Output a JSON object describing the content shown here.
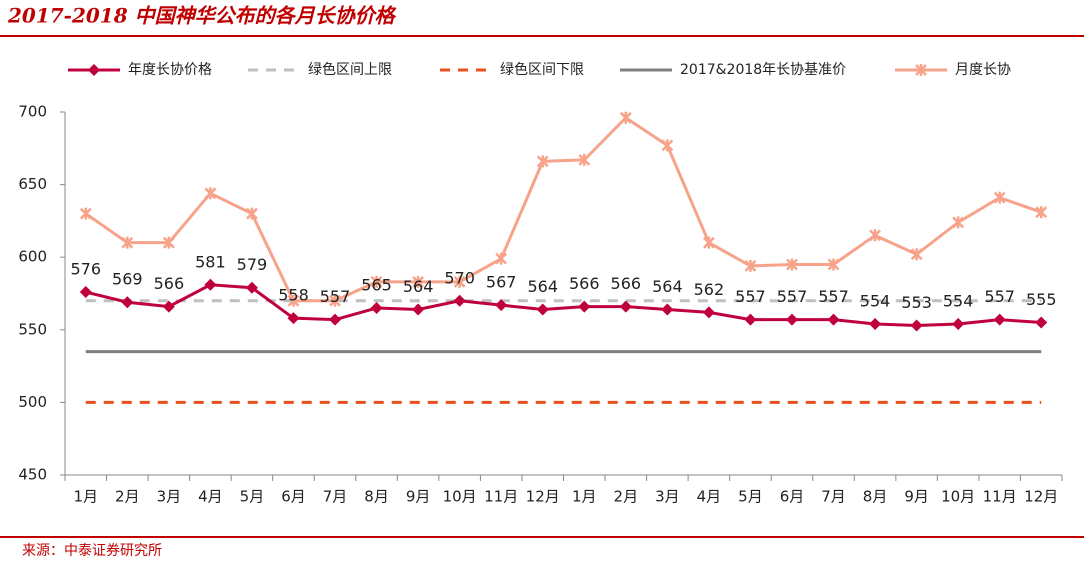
{
  "chart_data": {
    "type": "line",
    "title": "2017-2018 中国神华公布的各月长协价格",
    "source": "来源：中泰证券研究所",
    "categories": [
      "1月",
      "2月",
      "3月",
      "4月",
      "5月",
      "6月",
      "7月",
      "8月",
      "9月",
      "10月",
      "11月",
      "12月",
      "1月",
      "2月",
      "3月",
      "4月",
      "5月",
      "6月",
      "7月",
      "8月",
      "9月",
      "10月",
      "11月",
      "12月"
    ],
    "ylim": [
      450,
      700
    ],
    "yticks": [
      450,
      500,
      550,
      600,
      650,
      700
    ],
    "grid": false,
    "series": [
      {
        "name": "年度长协价格",
        "color": "#c0003c",
        "style": "solid",
        "marker": "diamond",
        "show_labels": true,
        "values": [
          576,
          569,
          566,
          581,
          579,
          558,
          557,
          565,
          564,
          570,
          567,
          564,
          566,
          566,
          564,
          562,
          557,
          557,
          557,
          554,
          553,
          554,
          557,
          555
        ]
      },
      {
        "name": "绿色区间上限",
        "color": "#bfbfbf",
        "style": "dashed",
        "marker": "none",
        "show_labels": false,
        "values": [
          570,
          570,
          570,
          570,
          570,
          570,
          570,
          570,
          570,
          570,
          570,
          570,
          570,
          570,
          570,
          570,
          570,
          570,
          570,
          570,
          570,
          570,
          570,
          570
        ]
      },
      {
        "name": "绿色区间下限",
        "color": "#e8501e",
        "style": "dashed",
        "marker": "none",
        "show_labels": false,
        "values": [
          500,
          500,
          500,
          500,
          500,
          500,
          500,
          500,
          500,
          500,
          500,
          500,
          500,
          500,
          500,
          500,
          500,
          500,
          500,
          500,
          500,
          500,
          500,
          500
        ]
      },
      {
        "name": "2017&2018年长协基准价",
        "color": "#7f7f7f",
        "style": "solid",
        "marker": "none",
        "show_labels": false,
        "values": [
          535,
          535,
          535,
          535,
          535,
          535,
          535,
          535,
          535,
          535,
          535,
          535,
          535,
          535,
          535,
          535,
          535,
          535,
          535,
          535,
          535,
          535,
          535,
          535
        ]
      },
      {
        "name": "月度长协",
        "color": "#f7a38a",
        "style": "solid",
        "marker": "x",
        "show_labels": false,
        "values": [
          630,
          610,
          610,
          644,
          630,
          570,
          570,
          583,
          583,
          583,
          599,
          666,
          667,
          696,
          677,
          610,
          594,
          595,
          595,
          615,
          602,
          624,
          641,
          631
        ]
      }
    ]
  }
}
